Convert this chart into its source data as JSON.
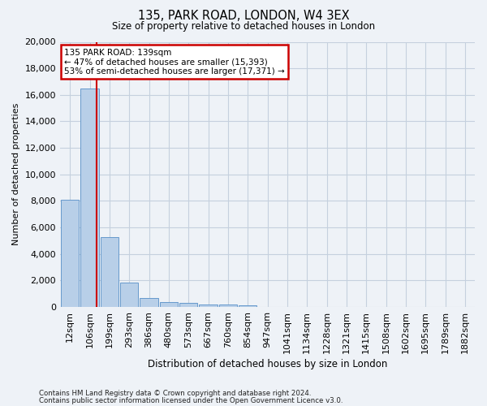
{
  "title1": "135, PARK ROAD, LONDON, W4 3EX",
  "title2": "Size of property relative to detached houses in London",
  "xlabel": "Distribution of detached houses by size in London",
  "ylabel": "Number of detached properties",
  "categories": [
    "12sqm",
    "106sqm",
    "199sqm",
    "293sqm",
    "386sqm",
    "480sqm",
    "573sqm",
    "667sqm",
    "760sqm",
    "854sqm",
    "947sqm",
    "1041sqm",
    "1134sqm",
    "1228sqm",
    "1321sqm",
    "1415sqm",
    "1508sqm",
    "1602sqm",
    "1695sqm",
    "1789sqm",
    "1882sqm"
  ],
  "values": [
    8100,
    16500,
    5300,
    1850,
    700,
    380,
    280,
    200,
    175,
    150,
    0,
    0,
    0,
    0,
    0,
    0,
    0,
    0,
    0,
    0,
    0
  ],
  "bar_color": "#b8cfe8",
  "bar_edge_color": "#6699cc",
  "annotation_title": "135 PARK ROAD: 139sqm",
  "annotation_line1": "← 47% of detached houses are smaller (15,393)",
  "annotation_line2": "53% of semi-detached houses are larger (17,371) →",
  "ylim": [
    0,
    20000
  ],
  "yticks": [
    0,
    2000,
    4000,
    6000,
    8000,
    10000,
    12000,
    14000,
    16000,
    18000,
    20000
  ],
  "footer1": "Contains HM Land Registry data © Crown copyright and database right 2024.",
  "footer2": "Contains public sector information licensed under the Open Government Licence v3.0.",
  "bg_color": "#eef2f7",
  "grid_color": "#c5d0de",
  "annotation_box_color": "#ffffff",
  "annotation_box_edge": "#cc0000",
  "red_line_color": "#cc0000",
  "red_line_x": 1.33
}
